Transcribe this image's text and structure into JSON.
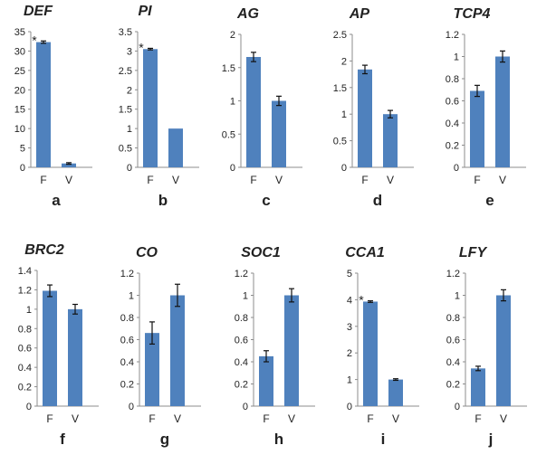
{
  "chart_data": [
    {
      "type": "bar",
      "panel": "a",
      "title": "DEF",
      "categories": [
        "F",
        "V"
      ],
      "values": [
        32.3,
        1.0
      ],
      "errors": [
        0.3,
        0.2
      ],
      "significant": [
        true,
        false
      ],
      "ylim": [
        0,
        35
      ],
      "ticks": [
        0,
        5,
        10,
        15,
        20,
        25,
        30,
        35
      ],
      "tick_labels": [
        "0",
        "5",
        "10",
        "15",
        "20",
        "25",
        "30",
        "35"
      ]
    },
    {
      "type": "bar",
      "panel": "b",
      "title": "PI",
      "categories": [
        "F",
        "V"
      ],
      "values": [
        3.05,
        1.0
      ],
      "errors": [
        0.02,
        0.0
      ],
      "significant": [
        true,
        false
      ],
      "ylim": [
        0,
        3.5
      ],
      "ticks": [
        0,
        0.5,
        1,
        1.5,
        2,
        2.5,
        3,
        3.5
      ],
      "tick_labels": [
        "0",
        "0.5",
        "1",
        "1.5",
        "2",
        "2.5",
        "3",
        "3.5"
      ]
    },
    {
      "type": "bar",
      "panel": "c",
      "title": "AG",
      "categories": [
        "F",
        "V"
      ],
      "values": [
        1.66,
        1.0
      ],
      "errors": [
        0.07,
        0.07
      ],
      "significant": [
        false,
        false
      ],
      "ylim": [
        0,
        2
      ],
      "ticks": [
        0,
        0.5,
        1,
        1.5,
        2
      ],
      "tick_labels": [
        "0",
        "0.5",
        "1",
        "1.5",
        "2"
      ]
    },
    {
      "type": "bar",
      "panel": "d",
      "title": "AP",
      "categories": [
        "F",
        "V"
      ],
      "values": [
        1.84,
        1.0
      ],
      "errors": [
        0.08,
        0.07
      ],
      "significant": [
        false,
        false
      ],
      "ylim": [
        0,
        2.5
      ],
      "ticks": [
        0,
        0.5,
        1,
        1.5,
        2,
        2.5
      ],
      "tick_labels": [
        "0",
        "0.5",
        "1",
        "1.5",
        "2",
        "2.5"
      ]
    },
    {
      "type": "bar",
      "panel": "e",
      "title": "TCP4",
      "categories": [
        "F",
        "V"
      ],
      "values": [
        0.69,
        1.0
      ],
      "errors": [
        0.05,
        0.05
      ],
      "significant": [
        false,
        false
      ],
      "ylim": [
        0,
        1.2
      ],
      "ticks": [
        0,
        0.2,
        0.4,
        0.6,
        0.8,
        1,
        1.2
      ],
      "tick_labels": [
        "0",
        "0.2",
        "0.4",
        "0.6",
        "0.8",
        "1",
        "1.2"
      ]
    },
    {
      "type": "bar",
      "panel": "f",
      "title": "BRC2",
      "categories": [
        "F",
        "V"
      ],
      "values": [
        1.19,
        1.0
      ],
      "errors": [
        0.06,
        0.05
      ],
      "significant": [
        false,
        false
      ],
      "ylim": [
        0,
        1.4
      ],
      "ticks": [
        0,
        0.2,
        0.4,
        0.6,
        0.8,
        1,
        1.2,
        1.4
      ],
      "tick_labels": [
        "0",
        "0.2",
        "0.4",
        "0.6",
        "0.8",
        "1",
        "1.2",
        "1.4"
      ]
    },
    {
      "type": "bar",
      "panel": "g",
      "title": "CO",
      "categories": [
        "F",
        "V"
      ],
      "values": [
        0.66,
        1.0
      ],
      "errors": [
        0.1,
        0.1
      ],
      "significant": [
        false,
        false
      ],
      "ylim": [
        0,
        1.2
      ],
      "ticks": [
        0,
        0.2,
        0.4,
        0.6,
        0.8,
        1,
        1.2
      ],
      "tick_labels": [
        "0",
        "0.2",
        "0.4",
        "0.6",
        "0.8",
        "1",
        "1.2"
      ]
    },
    {
      "type": "bar",
      "panel": "h",
      "title": "SOC1",
      "categories": [
        "F",
        "V"
      ],
      "values": [
        0.45,
        1.0
      ],
      "errors": [
        0.05,
        0.06
      ],
      "significant": [
        false,
        false
      ],
      "ylim": [
        0,
        1.2
      ],
      "ticks": [
        0,
        0.2,
        0.4,
        0.6,
        0.8,
        1,
        1.2
      ],
      "tick_labels": [
        "0",
        "0.2",
        "0.4",
        "0.6",
        "0.8",
        "1",
        "1.2"
      ]
    },
    {
      "type": "bar",
      "panel": "i",
      "title": "CCA1",
      "categories": [
        "F",
        "V"
      ],
      "values": [
        3.93,
        1.0
      ],
      "errors": [
        0.03,
        0.03
      ],
      "significant": [
        true,
        false
      ],
      "ylim": [
        0,
        5
      ],
      "ticks": [
        0,
        1,
        2,
        3,
        4,
        5
      ],
      "tick_labels": [
        "0",
        "1",
        "2",
        "3",
        "4",
        "5"
      ]
    },
    {
      "type": "bar",
      "panel": "j",
      "title": "LFY",
      "categories": [
        "F",
        "V"
      ],
      "values": [
        0.34,
        1.0
      ],
      "errors": [
        0.02,
        0.05
      ],
      "significant": [
        false,
        false
      ],
      "ylim": [
        0,
        1.2
      ],
      "ticks": [
        0,
        0.2,
        0.4,
        0.6,
        0.8,
        1,
        1.2
      ],
      "tick_labels": [
        "0",
        "0.2",
        "0.4",
        "0.6",
        "0.8",
        "1",
        "1.2"
      ]
    }
  ],
  "significance_marker": "*",
  "colors": {
    "bar": "#4f81bd",
    "axis": "#8c8c8c",
    "error": "#111111"
  }
}
